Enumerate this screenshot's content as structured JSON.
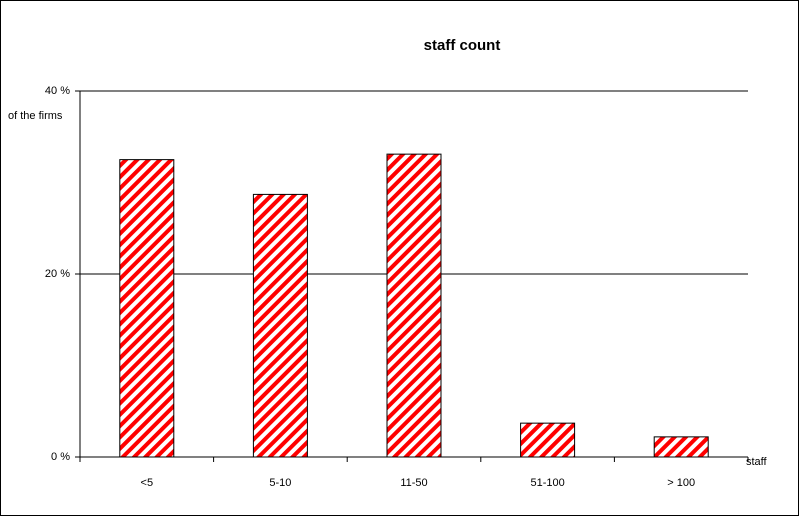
{
  "chart_data": {
    "type": "bar",
    "title": "staff count",
    "ylabel": "of the firms",
    "xlabel": "staff",
    "categories": [
      "<5",
      "5-10",
      "11-50",
      "51-100",
      "> 100"
    ],
    "values": [
      32.5,
      28.7,
      33.1,
      3.7,
      2.2
    ],
    "color": "#ff0000",
    "ylim": [
      0,
      40
    ],
    "yticks": [
      {
        "value": 0,
        "label": "0 %"
      },
      {
        "value": 20,
        "label": "20 %"
      },
      {
        "value": 40,
        "label": "40 %"
      }
    ],
    "grid": true
  }
}
